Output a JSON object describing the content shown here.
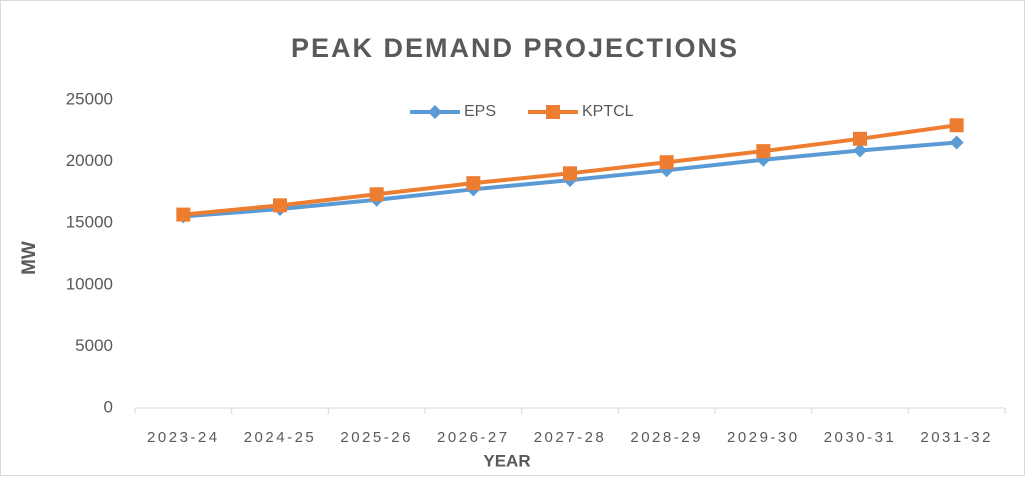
{
  "chart_data": {
    "type": "line",
    "title": "PEAK DEMAND PROJECTIONS",
    "x_label": "YEAR",
    "y_label": "MW",
    "categories": [
      "2023-24",
      "2024-25",
      "2025-26",
      "2026-27",
      "2027-28",
      "2028-29",
      "2029-30",
      "2030-31",
      "2031-32"
    ],
    "series": [
      {
        "name": "EPS",
        "color": "#5b9bd5",
        "marker": "diamond",
        "values": [
          15550,
          16150,
          16900,
          17750,
          18500,
          19300,
          20150,
          20900,
          21550
        ]
      },
      {
        "name": "KPTCL",
        "color": "#ed7d31",
        "marker": "square",
        "values": [
          15700,
          16450,
          17350,
          18250,
          19050,
          19950,
          20850,
          21850,
          22950
        ]
      }
    ],
    "ylim": [
      0,
      25000
    ],
    "yticks": [
      0,
      5000,
      10000,
      15000,
      20000,
      25000
    ],
    "grid": false,
    "legend": "top"
  }
}
